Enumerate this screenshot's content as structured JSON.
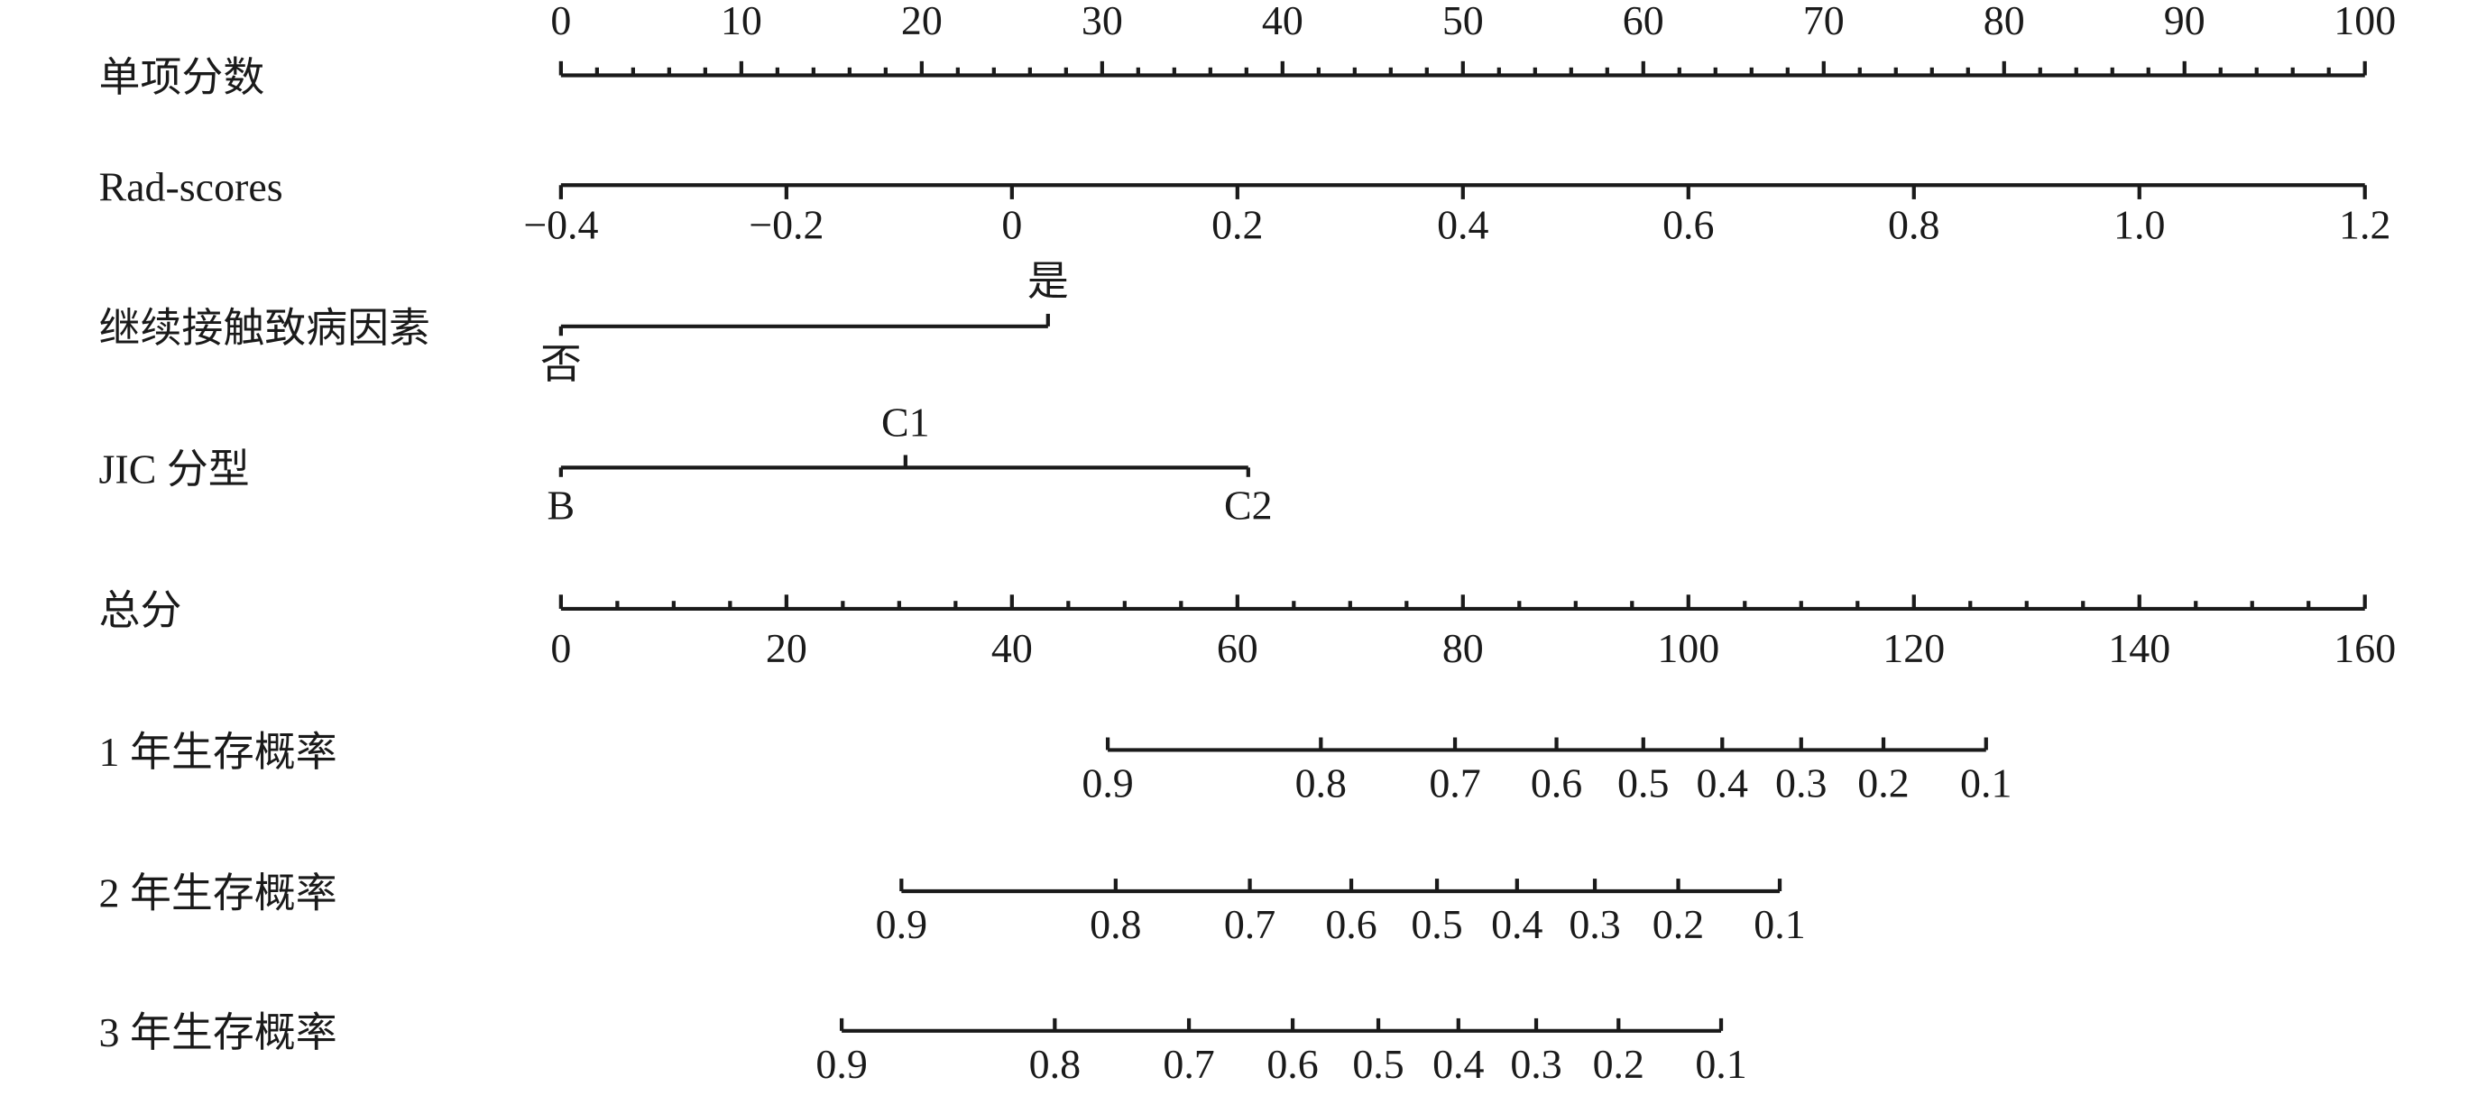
{
  "chart_data": {
    "type": "nomogram",
    "rows": [
      {
        "label": "单项分数",
        "xlim": [
          0,
          100
        ],
        "xticks": [
          0,
          10,
          20,
          30,
          40,
          50,
          60,
          70,
          80,
          90,
          100
        ],
        "minor_ticks": [
          2,
          4,
          6,
          8,
          12,
          14,
          16,
          18,
          22,
          24,
          26,
          28,
          32,
          34,
          36,
          38,
          42,
          44,
          46,
          48,
          52,
          54,
          56,
          58,
          62,
          64,
          66,
          68,
          72,
          74,
          76,
          78,
          82,
          84,
          86,
          88,
          92,
          94,
          96,
          98
        ]
      },
      {
        "label": "Rad-scores",
        "xlim": [
          -0.4,
          1.2
        ],
        "xticks": [
          {
            "value": -0.4,
            "label": "−0.4"
          },
          {
            "value": -0.2,
            "label": "−0.2"
          },
          0,
          0.2,
          0.4,
          0.6,
          0.8,
          {
            "value": 1,
            "label": "1.0"
          },
          1.2
        ]
      },
      {
        "label": "继续接触致病因素",
        "categories": [
          "否",
          "是"
        ],
        "points": [
          0,
          27.0
        ]
      },
      {
        "label": "JIC 分型",
        "categories": [
          "B",
          "C1",
          "C2"
        ],
        "points": [
          0,
          19.1,
          38.1
        ]
      },
      {
        "label": "总分",
        "xlim": [
          0,
          160
        ],
        "xticks": [
          0,
          20,
          40,
          60,
          80,
          100,
          120,
          140,
          160
        ],
        "minor_ticks": [
          5,
          10,
          15,
          25,
          30,
          35,
          45,
          50,
          55,
          65,
          70,
          75,
          85,
          90,
          95,
          105,
          110,
          115,
          125,
          130,
          135,
          145,
          150,
          155
        ]
      },
      {
        "label": "1 年生存概率",
        "ticks": [
          0.9,
          0.8,
          0.7,
          0.6,
          0.5,
          0.4,
          0.3,
          0.2,
          0.1
        ],
        "points": [
          48.5,
          67.4,
          79.3,
          88.3,
          96.0,
          103.0,
          110.0,
          117.3,
          126.4
        ]
      },
      {
        "label": "2 年生存概率",
        "ticks": [
          0.9,
          0.8,
          0.7,
          0.6,
          0.5,
          0.4,
          0.3,
          0.2,
          0.1
        ],
        "points": [
          30.2,
          49.2,
          61.1,
          70.1,
          77.7,
          84.8,
          91.7,
          99.1,
          108.1
        ]
      },
      {
        "label": "3 年生存概率",
        "ticks": [
          0.9,
          0.8,
          0.7,
          0.6,
          0.5,
          0.4,
          0.3,
          0.2,
          0.1
        ],
        "points": [
          24.9,
          43.8,
          55.7,
          64.9,
          72.5,
          79.6,
          86.5,
          93.8,
          102.9
        ]
      }
    ]
  }
}
